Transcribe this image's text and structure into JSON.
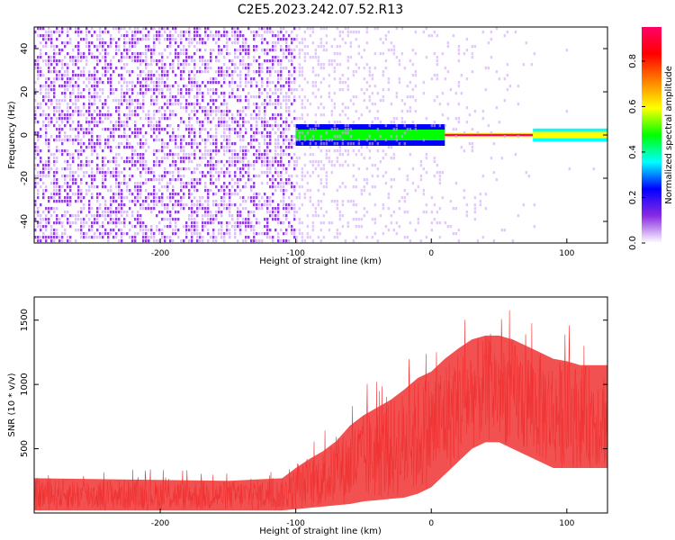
{
  "title": "C2E5.2023.242.07.52.R13",
  "chart_data": [
    {
      "type": "heatmap",
      "xlabel": "Height of straight line (km)",
      "ylabel": "Frequency (Hz)",
      "xlim": [
        -293,
        130
      ],
      "ylim": [
        -50,
        50
      ],
      "x_ticks": [
        -200,
        -100,
        0,
        100
      ],
      "y_ticks": [
        -40,
        -20,
        0,
        20,
        40
      ],
      "colorbar": {
        "label": "Normalized spectral amplitude",
        "range": [
          0,
          0.95
        ],
        "ticks": [
          "0.0",
          "0.2",
          "0.4",
          "0.6",
          "0.8"
        ],
        "ticks_values": [
          0,
          0.2,
          0.4,
          0.6,
          0.8
        ],
        "colormap": [
          "#ffffff",
          "#8a2be2",
          "#0000ff",
          "#00ffff",
          "#00ff00",
          "#ffff00",
          "#ff8000",
          "#ff0000",
          "#ff0066"
        ]
      },
      "regions": [
        {
          "x_range": [
            -293,
            -100
          ],
          "frequency_range": [
            -50,
            50
          ],
          "amplitude": 0.12,
          "description": "noise"
        },
        {
          "x_range": [
            -100,
            10
          ],
          "frequency_range": [
            -5,
            5
          ],
          "amplitude": 0.45
        },
        {
          "x_range": [
            10,
            75
          ],
          "frequency_range": [
            -1,
            1
          ],
          "amplitude": 0.9
        },
        {
          "x_range": [
            75,
            130
          ],
          "frequency_range": [
            -3,
            3
          ],
          "amplitude": 0.55
        }
      ]
    },
    {
      "type": "line",
      "xlabel": "Height of straight line (km)",
      "ylabel": "SNR (10 * v/v)",
      "xlim": [
        -293,
        130
      ],
      "ylim": [
        0,
        1680
      ],
      "x_ticks": [
        -200,
        -100,
        0,
        100
      ],
      "y_ticks": [
        500,
        1000,
        1500
      ],
      "series": [
        {
          "name": "SNR",
          "color": "#f03232",
          "envelope_x": [
            -293,
            -150,
            -110,
            -100,
            -90,
            -80,
            -70,
            -60,
            -50,
            -40,
            -30,
            -20,
            -10,
            0,
            10,
            20,
            30,
            40,
            50,
            60,
            70,
            80,
            90,
            100,
            110,
            120,
            130
          ],
          "envelope_low": [
            20,
            20,
            20,
            30,
            40,
            50,
            60,
            70,
            90,
            100,
            110,
            120,
            150,
            200,
            300,
            400,
            500,
            550,
            550,
            500,
            450,
            400,
            350,
            350,
            350,
            350,
            350
          ],
          "envelope_high": [
            270,
            250,
            270,
            350,
            420,
            480,
            560,
            680,
            760,
            820,
            880,
            960,
            1050,
            1100,
            1200,
            1280,
            1350,
            1380,
            1380,
            1350,
            1300,
            1250,
            1200,
            1180,
            1150,
            1150,
            1150
          ]
        }
      ]
    }
  ]
}
